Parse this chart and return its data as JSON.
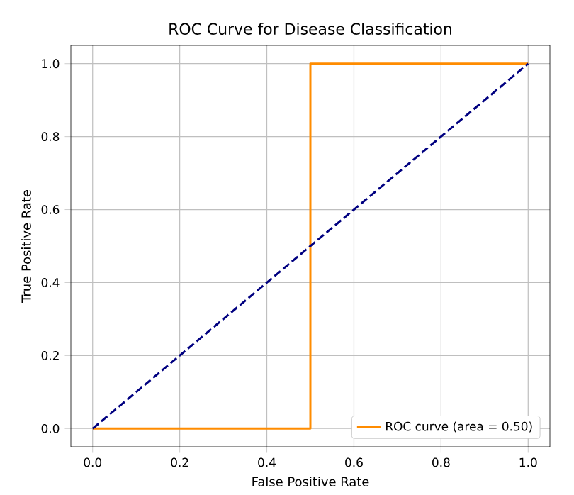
{
  "chart_data": {
    "type": "line",
    "title": "ROC Curve for Disease Classification",
    "xlabel": "False Positive Rate",
    "ylabel": "True Positive Rate",
    "series": [
      {
        "name": "ROC curve (area = 0.50)",
        "color": "#ff8c00",
        "x": [
          0,
          0.5,
          0.5,
          1
        ],
        "values": [
          0,
          0,
          1,
          1
        ],
        "line_style": "solid"
      },
      {
        "color": "#000080",
        "x": [
          0,
          1
        ],
        "values": [
          0,
          1
        ],
        "line_style": "dashed"
      }
    ],
    "xlim": [
      -0.05,
      1.05
    ],
    "ylim": [
      -0.05,
      1.05
    ],
    "xticks": [
      {
        "value": 0,
        "label": "0.0"
      },
      {
        "value": 0.2,
        "label": "0.2"
      },
      {
        "value": 0.4,
        "label": "0.4"
      },
      {
        "value": 0.6,
        "label": "0.6"
      },
      {
        "value": 0.8,
        "label": "0.8"
      },
      {
        "value": 1,
        "label": "1.0"
      }
    ],
    "yticks": [
      {
        "value": 0,
        "label": "0.0"
      },
      {
        "value": 0.2,
        "label": "0.2"
      },
      {
        "value": 0.4,
        "label": "0.4"
      },
      {
        "value": 0.6,
        "label": "0.6"
      },
      {
        "value": 0.8,
        "label": "0.8"
      },
      {
        "value": 1,
        "label": "1.0"
      }
    ],
    "grid": true,
    "legend": "bottom right",
    "marker": "none"
  }
}
